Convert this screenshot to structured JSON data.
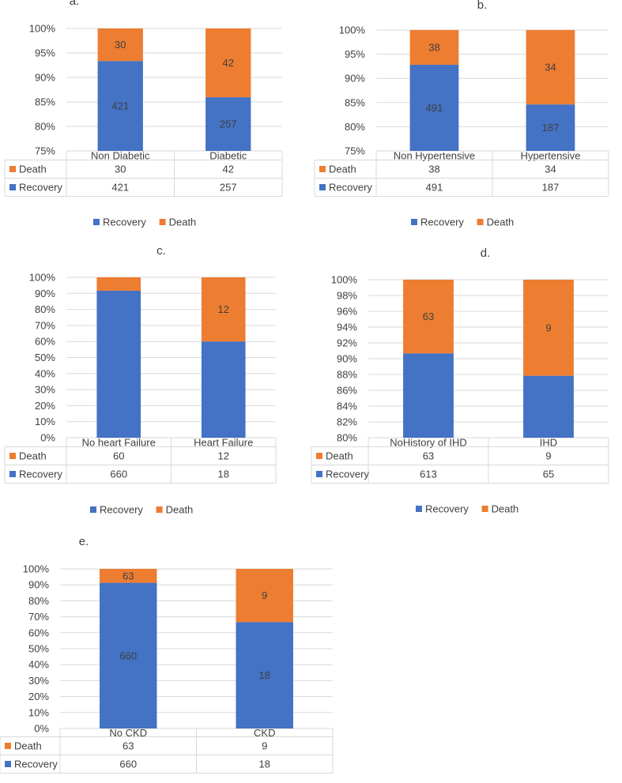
{
  "colors": {
    "recovery": "#4472C4",
    "death": "#ED7D31",
    "grid": "#D9D9D9",
    "text": "#404040"
  },
  "chart_data": [
    {
      "type": "bar",
      "stacked": "percent",
      "title": "a.",
      "categories": [
        "Non Diabetic",
        "Diabetic"
      ],
      "ylim": [
        75,
        100
      ],
      "ystep": 5,
      "ytick_labels": [
        "75%",
        "80%",
        "85%",
        "90%",
        "95%",
        "100%"
      ],
      "series": [
        {
          "name": "Recovery",
          "color_key": "recovery",
          "values": [
            421,
            257
          ],
          "labels": [
            "421",
            "257"
          ]
        },
        {
          "name": "Death",
          "color_key": "death",
          "values": [
            30,
            42
          ],
          "labels": [
            "30",
            "42"
          ]
        }
      ],
      "data_table": true,
      "legend": "bottom"
    },
    {
      "type": "bar",
      "stacked": "percent",
      "title": "b.",
      "categories": [
        "Non Hypertensive",
        "Hypertensive"
      ],
      "ylim": [
        75,
        100
      ],
      "ystep": 5,
      "ytick_labels": [
        "75%",
        "80%",
        "85%",
        "90%",
        "95%",
        "100%"
      ],
      "series": [
        {
          "name": "Recovery",
          "color_key": "recovery",
          "values": [
            491,
            187
          ],
          "labels": [
            "491",
            "187"
          ]
        },
        {
          "name": "Death",
          "color_key": "death",
          "values": [
            38,
            34
          ],
          "labels": [
            "38",
            "34"
          ]
        }
      ],
      "data_table": true,
      "legend": "bottom"
    },
    {
      "type": "bar",
      "stacked": "percent",
      "title": "c.",
      "categories": [
        "No heart Failure",
        "Heart Failure"
      ],
      "ylim": [
        0,
        100
      ],
      "ystep": 10,
      "ytick_labels": [
        "0%",
        "10%",
        "20%",
        "30%",
        "40%",
        "50%",
        "60%",
        "70%",
        "80%",
        "90%",
        "100%"
      ],
      "series": [
        {
          "name": "Recovery",
          "color_key": "recovery",
          "values": [
            660,
            18
          ],
          "labels": [
            "",
            ""
          ]
        },
        {
          "name": "Death",
          "color_key": "death",
          "values": [
            60,
            12
          ],
          "labels": [
            "",
            "12"
          ]
        }
      ],
      "data_table": true,
      "legend": "bottom"
    },
    {
      "type": "bar",
      "stacked": "percent",
      "title": "d.",
      "categories": [
        "NoHistory of IHD",
        "IHD"
      ],
      "ylim": [
        80,
        100
      ],
      "ystep": 2,
      "ytick_labels": [
        "80%",
        "82%",
        "84%",
        "86%",
        "88%",
        "90%",
        "92%",
        "94%",
        "96%",
        "98%",
        "100%"
      ],
      "series": [
        {
          "name": "Recovery",
          "color_key": "recovery",
          "values": [
            613,
            65
          ],
          "labels": [
            "",
            ""
          ]
        },
        {
          "name": "Death",
          "color_key": "death",
          "values": [
            63,
            9
          ],
          "labels": [
            "63",
            "9"
          ]
        }
      ],
      "data_table": true,
      "legend": "bottom"
    },
    {
      "type": "bar",
      "stacked": "percent",
      "title": "e.",
      "categories": [
        "No CKD",
        "CKD"
      ],
      "ylim": [
        0,
        100
      ],
      "ystep": 10,
      "ytick_labels": [
        "0%",
        "10%",
        "20%",
        "30%",
        "40%",
        "50%",
        "60%",
        "70%",
        "80%",
        "90%",
        "100%"
      ],
      "series": [
        {
          "name": "Recovery",
          "color_key": "recovery",
          "values": [
            660,
            18
          ],
          "labels": [
            "660",
            "18"
          ]
        },
        {
          "name": "Death",
          "color_key": "death",
          "values": [
            63,
            9
          ],
          "labels": [
            "63",
            "9"
          ]
        }
      ],
      "data_table": true,
      "legend": "none"
    }
  ]
}
